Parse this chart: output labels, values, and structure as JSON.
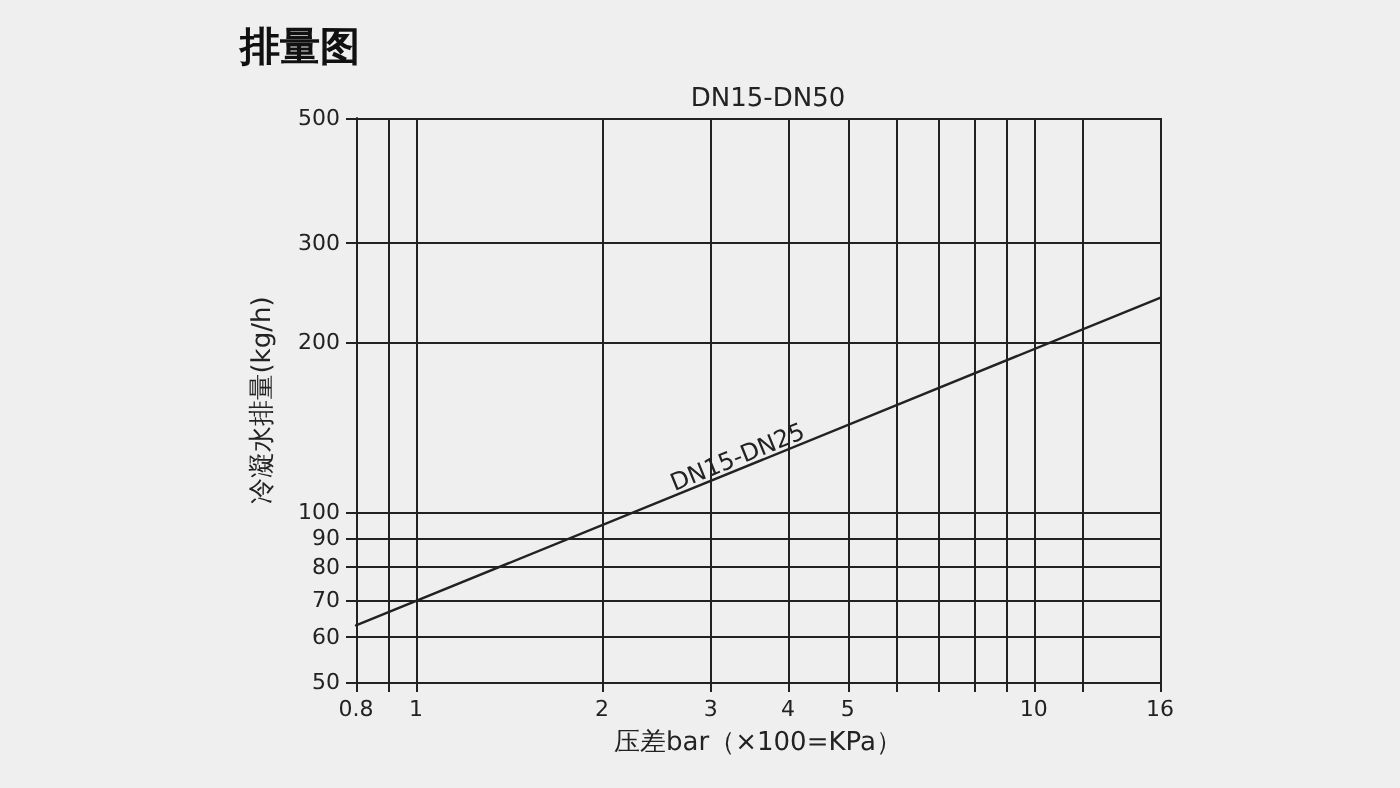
{
  "chart_data": {
    "type": "line",
    "title": "排量图",
    "subtitle": "DN15-DN50",
    "xlabel": "压差bar（×100=KPa）",
    "ylabel": "冷凝水排量(kg/h)",
    "x": [
      0.8,
      16
    ],
    "series": [
      {
        "name": "DN15-DN25",
        "color": "#222222",
        "values": [
          63,
          240
        ]
      }
    ],
    "xlim": [
      0.8,
      16
    ],
    "ylim": [
      50,
      500
    ],
    "xticks": [
      0.8,
      {
        "value": 0.9,
        "label": null
      },
      1,
      2,
      3,
      4,
      5,
      {
        "value": 6,
        "label": null
      },
      {
        "value": 7,
        "label": null
      },
      {
        "value": 8,
        "label": null
      },
      {
        "value": 9,
        "label": null
      },
      10,
      {
        "value": 12,
        "label": null
      },
      16
    ],
    "yticks": [
      50,
      60,
      70,
      80,
      90,
      100,
      200,
      300,
      500
    ],
    "log": "xy",
    "grid": true,
    "line_style": "solid",
    "marker": "none",
    "legend": false
  }
}
